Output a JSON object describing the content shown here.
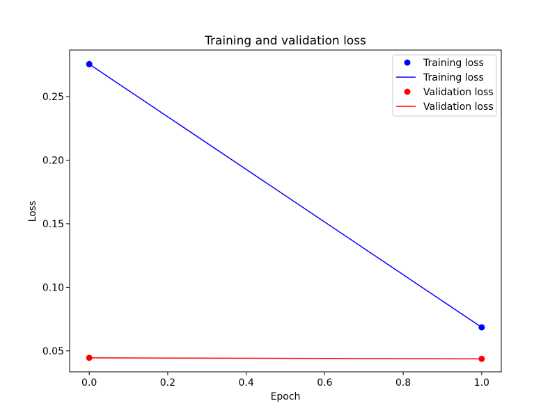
{
  "chart_data": {
    "type": "line",
    "title": "Training and validation loss",
    "xlabel": "Epoch",
    "ylabel": "Loss",
    "xlim": [
      -0.05,
      1.05
    ],
    "ylim": [
      0.0335,
      0.2866
    ],
    "xticks": [
      0.0,
      0.2,
      0.4,
      0.6,
      0.8,
      1.0
    ],
    "xtick_labels": [
      "0.0",
      "0.2",
      "0.4",
      "0.6",
      "0.8",
      "1.0"
    ],
    "yticks": [
      0.05,
      0.1,
      0.15,
      0.2,
      0.25
    ],
    "ytick_labels": [
      "0.05",
      "0.10",
      "0.15",
      "0.20",
      "0.25"
    ],
    "grid": false,
    "legend_position": "top-right",
    "x": [
      0,
      1
    ],
    "series": [
      {
        "name": "Training loss",
        "values": [
          0.2755,
          0.0685
        ],
        "color": "#0000ff",
        "style": "markers"
      },
      {
        "name": "Training loss",
        "values": [
          0.2755,
          0.0685
        ],
        "color": "#0000ff",
        "style": "line"
      },
      {
        "name": "Validation loss",
        "values": [
          0.0445,
          0.0437
        ],
        "color": "#ff0000",
        "style": "markers"
      },
      {
        "name": "Validation loss",
        "values": [
          0.0445,
          0.0437
        ],
        "color": "#ff0000",
        "style": "line"
      }
    ]
  }
}
